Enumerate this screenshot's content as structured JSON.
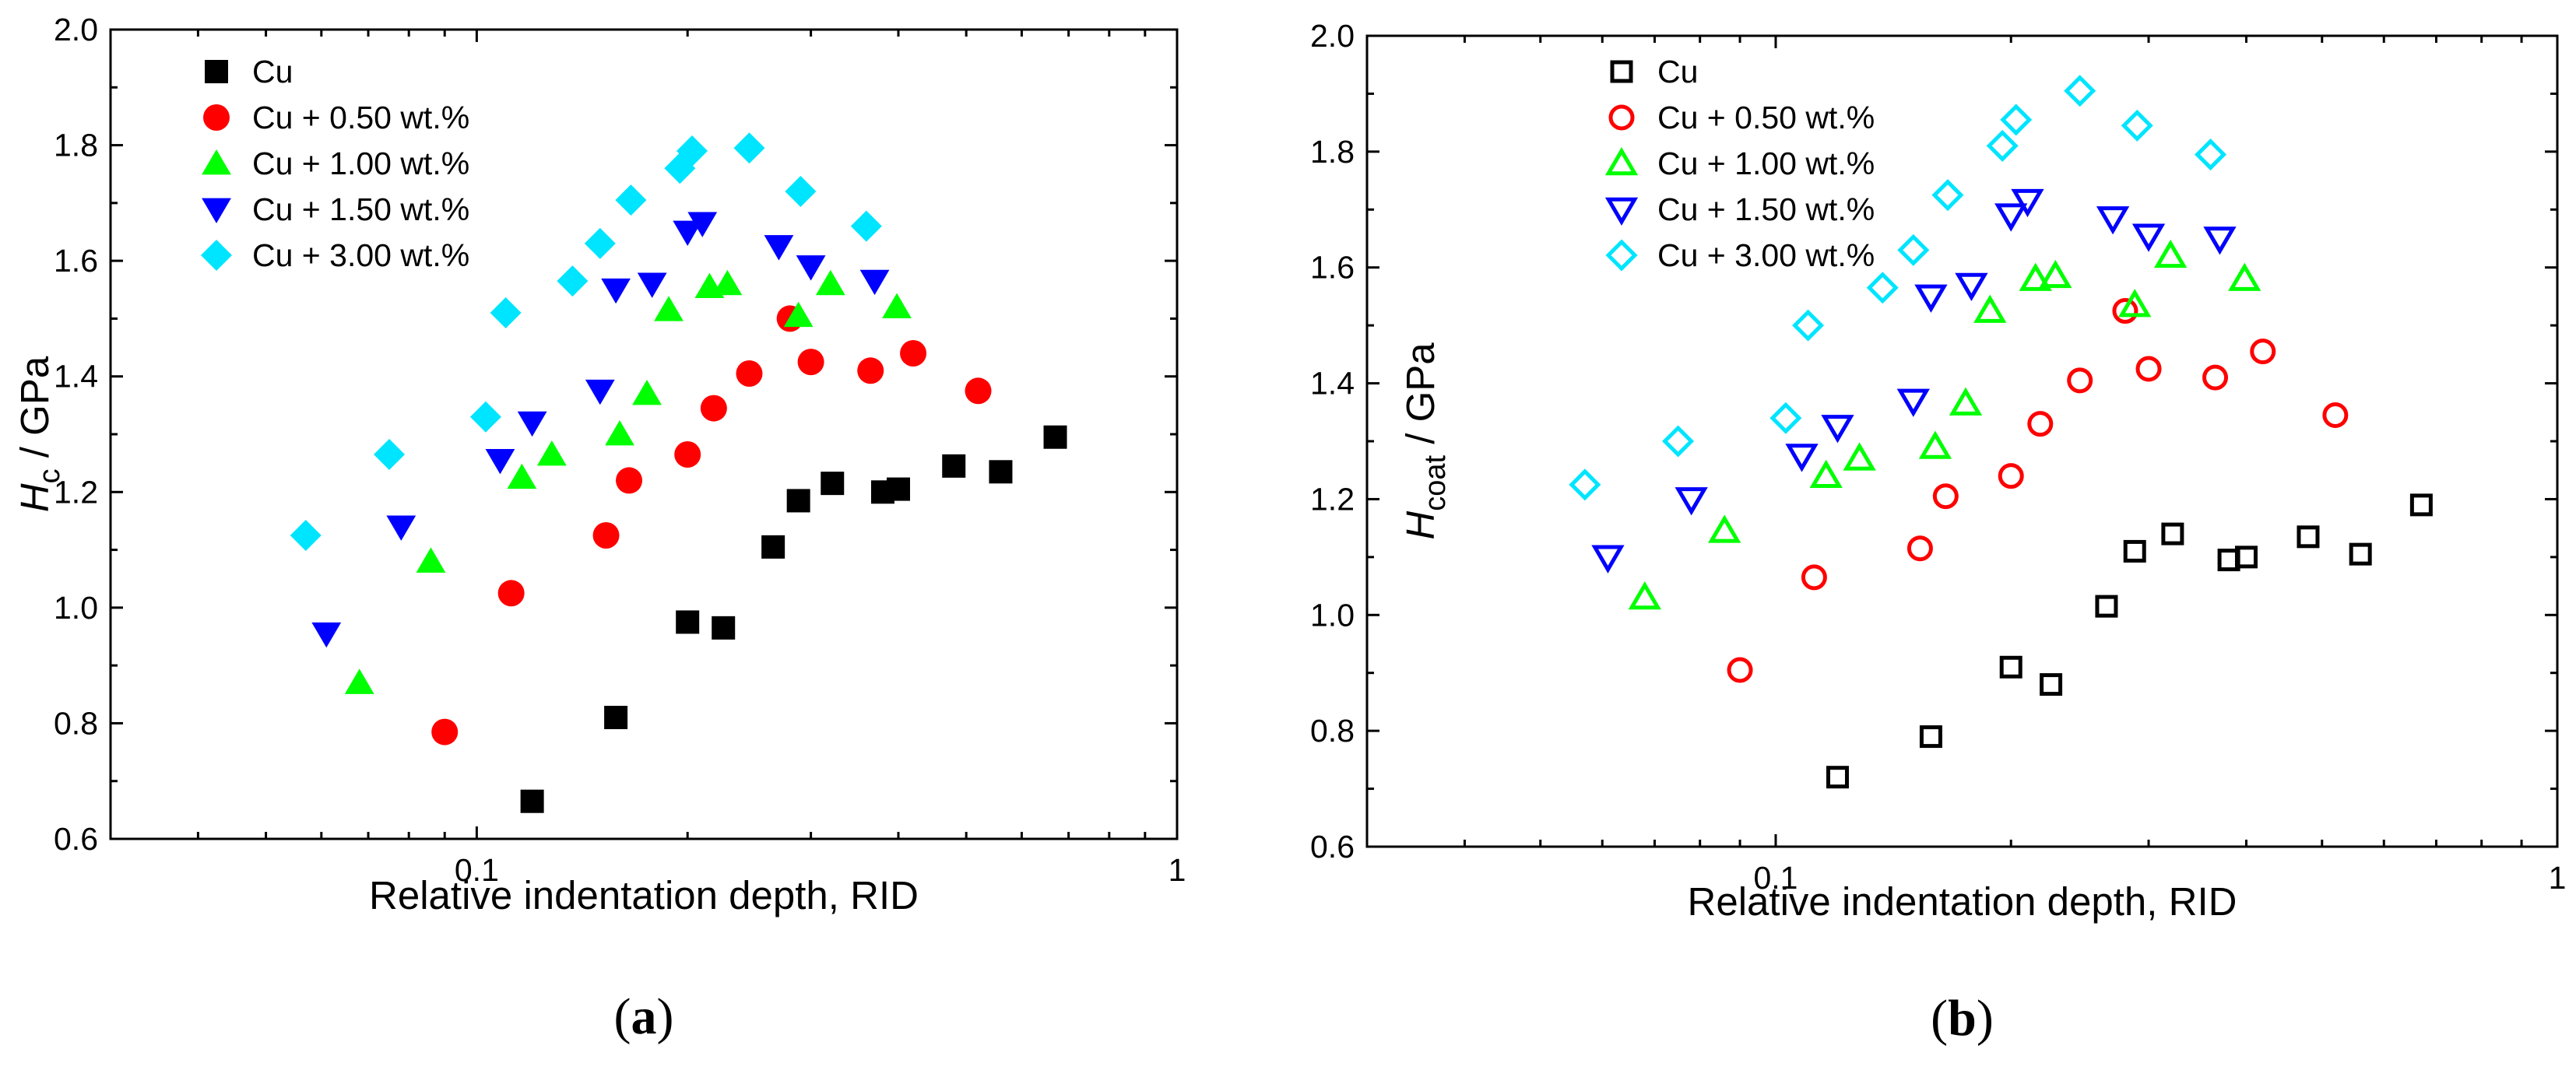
{
  "chart_data": [
    {
      "panel": "(a)",
      "panel_letter": "a",
      "type": "scatter",
      "filled": true,
      "xscale": "log",
      "xlim": [
        0.03,
        1
      ],
      "ylim": [
        0.6,
        2.0
      ],
      "xticks": [
        0.1,
        1
      ],
      "xtick_labels": [
        "0.1",
        "1"
      ],
      "yticks": [
        0.6,
        0.8,
        1.0,
        1.2,
        1.4,
        1.6,
        1.8,
        2.0
      ],
      "ytick_labels": [
        "0.6",
        "0.8",
        "1.0",
        "1.2",
        "1.4",
        "1.6",
        "1.8",
        "2.0"
      ],
      "xlabel": "Relative indentation depth, RID",
      "ylabel_main": "H",
      "ylabel_sub": "c",
      "ylabel_rest": " / GPa",
      "legend_position": "top-left",
      "series": [
        {
          "name": "Cu",
          "marker": "square",
          "color": "#000000",
          "x": [
            0.12,
            0.158,
            0.2,
            0.225,
            0.265,
            0.288,
            0.322,
            0.38,
            0.4,
            0.48,
            0.56,
            0.67
          ],
          "y": [
            0.665,
            0.81,
            0.975,
            0.965,
            1.105,
            1.185,
            1.215,
            1.2,
            1.205,
            1.245,
            1.235,
            1.295
          ]
        },
        {
          "name": "Cu + 0.50 wt.%",
          "marker": "circle",
          "color": "#ff0000",
          "x": [
            0.09,
            0.112,
            0.153,
            0.165,
            0.2,
            0.218,
            0.245,
            0.3,
            0.365,
            0.42,
            0.52,
            0.28
          ],
          "y": [
            0.785,
            1.025,
            1.125,
            1.22,
            1.265,
            1.345,
            1.405,
            1.425,
            1.41,
            1.44,
            1.375,
            1.5
          ]
        },
        {
          "name": "Cu + 1.00 wt.%",
          "marker": "triangle-up",
          "color": "#00ff00",
          "x": [
            0.068,
            0.086,
            0.116,
            0.128,
            0.16,
            0.175,
            0.188,
            0.215,
            0.228,
            0.288,
            0.32,
            0.398
          ],
          "y": [
            0.87,
            1.08,
            1.225,
            1.265,
            1.3,
            1.37,
            1.515,
            1.555,
            1.56,
            1.505,
            1.56,
            1.52
          ]
        },
        {
          "name": "Cu + 1.50 wt.%",
          "marker": "triangle-down",
          "color": "#0000ff",
          "x": [
            0.061,
            0.078,
            0.108,
            0.12,
            0.15,
            0.158,
            0.178,
            0.2,
            0.21,
            0.27,
            0.3,
            0.37
          ],
          "y": [
            0.955,
            1.14,
            1.255,
            1.32,
            1.375,
            1.55,
            1.56,
            1.65,
            1.665,
            1.625,
            1.59,
            1.565
          ]
        },
        {
          "name": "Cu + 3.00 wt.%",
          "marker": "diamond",
          "color": "#00e5ff",
          "x": [
            0.057,
            0.075,
            0.103,
            0.11,
            0.137,
            0.15,
            0.166,
            0.195,
            0.203,
            0.245,
            0.29,
            0.36
          ],
          "y": [
            1.125,
            1.265,
            1.33,
            1.51,
            1.565,
            1.63,
            1.705,
            1.76,
            1.79,
            1.795,
            1.72,
            1.66
          ]
        }
      ]
    },
    {
      "panel": "(b)",
      "panel_letter": "b",
      "type": "scatter",
      "filled": false,
      "xscale": "log",
      "xlim": [
        0.03,
        1
      ],
      "ylim": [
        0.6,
        2.0
      ],
      "xticks": [
        0.1,
        1
      ],
      "xtick_labels": [
        "0.1",
        "1"
      ],
      "yticks": [
        0.6,
        0.8,
        1.0,
        1.2,
        1.4,
        1.6,
        1.8,
        2.0
      ],
      "ytick_labels": [
        "0.6",
        "0.8",
        "1.0",
        "1.2",
        "1.4",
        "1.6",
        "1.8",
        "2.0"
      ],
      "xlabel": "Relative indentation depth, RID",
      "ylabel_main": "H",
      "ylabel_sub": "coat",
      "ylabel_rest": " / GPa",
      "legend_position": "top-left",
      "series": [
        {
          "name": "Cu",
          "marker": "square",
          "color": "#000000",
          "x": [
            0.12,
            0.158,
            0.2,
            0.225,
            0.265,
            0.288,
            0.322,
            0.38,
            0.4,
            0.48,
            0.56,
            0.67
          ],
          "y": [
            0.72,
            0.79,
            0.91,
            0.88,
            1.015,
            1.11,
            1.14,
            1.095,
            1.1,
            1.135,
            1.105,
            1.19
          ]
        },
        {
          "name": "Cu + 0.50 wt.%",
          "marker": "circle",
          "color": "#ff0000",
          "x": [
            0.09,
            0.112,
            0.153,
            0.165,
            0.2,
            0.218,
            0.245,
            0.3,
            0.365,
            0.42,
            0.52,
            0.28
          ],
          "y": [
            0.905,
            1.065,
            1.115,
            1.205,
            1.24,
            1.33,
            1.405,
            1.425,
            1.41,
            1.455,
            1.345,
            1.525
          ]
        },
        {
          "name": "Cu + 1.00 wt.%",
          "marker": "triangle-up",
          "color": "#00ff00",
          "x": [
            0.068,
            0.086,
            0.116,
            0.128,
            0.16,
            0.175,
            0.188,
            0.215,
            0.228,
            0.288,
            0.32,
            0.398
          ],
          "y": [
            1.03,
            1.145,
            1.24,
            1.27,
            1.29,
            1.365,
            1.525,
            1.58,
            1.585,
            1.535,
            1.62,
            1.58
          ]
        },
        {
          "name": "Cu + 1.50 wt.%",
          "marker": "triangle-down",
          "color": "#0000ff",
          "x": [
            0.061,
            0.078,
            0.108,
            0.12,
            0.15,
            0.158,
            0.178,
            0.2,
            0.21,
            0.27,
            0.3,
            0.37
          ],
          "y": [
            1.1,
            1.2,
            1.275,
            1.325,
            1.37,
            1.55,
            1.57,
            1.69,
            1.715,
            1.685,
            1.655,
            1.65
          ]
        },
        {
          "name": "Cu + 3.00 wt.%",
          "marker": "diamond",
          "color": "#00e5ff",
          "x": [
            0.057,
            0.075,
            0.103,
            0.11,
            0.137,
            0.15,
            0.166,
            0.195,
            0.203,
            0.245,
            0.29,
            0.36
          ],
          "y": [
            1.225,
            1.3,
            1.34,
            1.5,
            1.565,
            1.63,
            1.725,
            1.81,
            1.855,
            1.905,
            1.845,
            1.795
          ]
        }
      ]
    }
  ]
}
